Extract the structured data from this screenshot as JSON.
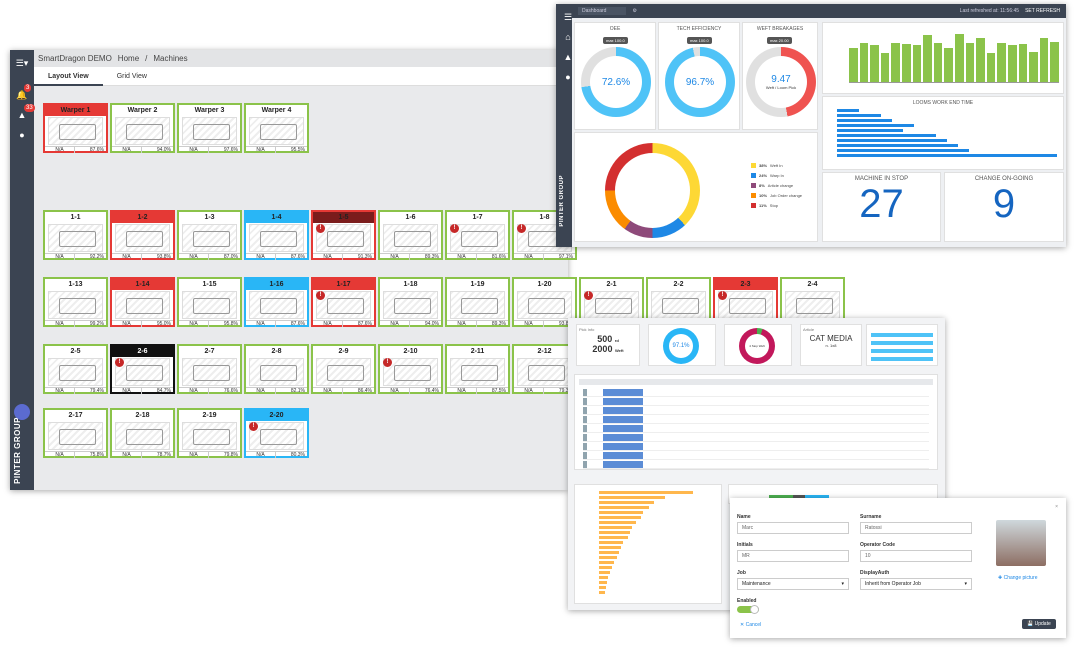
{
  "w1": {
    "app": "SmartDragon DEMO",
    "crumbs": [
      "Home",
      "/",
      "Machines"
    ],
    "tabs": [
      "Layout View",
      "Grid View"
    ],
    "badges": [
      "3",
      "33"
    ],
    "brand": "PINTER GROUP",
    "logo": "smart-dragon"
  },
  "machines": [
    {
      "n": "Warper 1",
      "a": "N/A",
      "b": "87.6%",
      "s": "red"
    },
    {
      "n": "Warper 2",
      "a": "N/A",
      "b": "94.0%",
      "s": ""
    },
    {
      "n": "Warper 3",
      "a": "N/A",
      "b": "97.6%",
      "s": ""
    },
    {
      "n": "Warper 4",
      "a": "N/A",
      "b": "95.5%",
      "s": ""
    },
    {
      "n": "1-1",
      "a": "N/A",
      "b": "92.2%",
      "s": ""
    },
    {
      "n": "1-2",
      "a": "N/A",
      "b": "93.8%",
      "s": "red"
    },
    {
      "n": "1-3",
      "a": "N/A",
      "b": "87.0%",
      "s": ""
    },
    {
      "n": "1-4",
      "a": "N/A",
      "b": "87.6%",
      "s": "blue"
    },
    {
      "n": "1-5",
      "a": "N/A",
      "b": "91.3%",
      "s": "dark",
      "al": 1
    },
    {
      "n": "1-6",
      "a": "N/A",
      "b": "89.3%",
      "s": ""
    },
    {
      "n": "1-7",
      "a": "N/A",
      "b": "81.6%",
      "s": "",
      "al": 1
    },
    {
      "n": "1-8",
      "a": "N/A",
      "b": "97.1%",
      "s": "",
      "al": 1
    },
    {
      "n": "1-13",
      "a": "N/A",
      "b": "99.2%",
      "s": ""
    },
    {
      "n": "1-14",
      "a": "N/A",
      "b": "95.0%",
      "s": "red"
    },
    {
      "n": "1-15",
      "a": "N/A",
      "b": "95.8%",
      "s": ""
    },
    {
      "n": "1-16",
      "a": "N/A",
      "b": "87.6%",
      "s": "blue"
    },
    {
      "n": "1-17",
      "a": "N/A",
      "b": "87.6%",
      "s": "red",
      "al": 1
    },
    {
      "n": "1-18",
      "a": "N/A",
      "b": "94.0%",
      "s": ""
    },
    {
      "n": "1-19",
      "a": "N/A",
      "b": "89.3%",
      "s": ""
    },
    {
      "n": "1-20",
      "a": "N/A",
      "b": "93.8%",
      "s": ""
    },
    {
      "n": "2-1",
      "a": "N/A",
      "b": "",
      "s": "",
      "al": 1
    },
    {
      "n": "2-2",
      "a": "N/A",
      "b": "",
      "s": ""
    },
    {
      "n": "2-3",
      "a": "N/A",
      "b": "",
      "s": "red",
      "al": 1
    },
    {
      "n": "2-4",
      "a": "N/A",
      "b": "",
      "s": ""
    },
    {
      "n": "2-5",
      "a": "N/A",
      "b": "79.4%",
      "s": ""
    },
    {
      "n": "2-6",
      "a": "N/A",
      "b": "84.7%",
      "s": "black",
      "al": 1
    },
    {
      "n": "2-7",
      "a": "N/A",
      "b": "76.6%",
      "s": ""
    },
    {
      "n": "2-8",
      "a": "N/A",
      "b": "82.1%",
      "s": ""
    },
    {
      "n": "2-9",
      "a": "N/A",
      "b": "86.4%",
      "s": ""
    },
    {
      "n": "2-10",
      "a": "N/A",
      "b": "76.4%",
      "s": "",
      "al": 1
    },
    {
      "n": "2-11",
      "a": "N/A",
      "b": "87.5%",
      "s": ""
    },
    {
      "n": "2-12",
      "a": "N/A",
      "b": "79.3%",
      "s": ""
    },
    {
      "n": "2-17",
      "a": "N/A",
      "b": "75.8%",
      "s": ""
    },
    {
      "n": "2-18",
      "a": "N/A",
      "b": "78.7%",
      "s": ""
    },
    {
      "n": "2-19",
      "a": "N/A",
      "b": "79.8%",
      "s": ""
    },
    {
      "n": "2-20",
      "a": "N/A",
      "b": "80.3%",
      "s": "blue",
      "al": 1
    }
  ],
  "w2": {
    "title": "Dashboard",
    "last_refresh": "Last refreshed at: 11:56:45",
    "refresh_btn": "SET REFRESH",
    "oee": {
      "title": "OEE",
      "max": "max 100.0",
      "value": "72.6%",
      "pct": 72.6
    },
    "tech": {
      "title": "TECH EFFICIENCY",
      "max": "max 100.0",
      "value": "96.7%",
      "pct": 96.7
    },
    "weft": {
      "title": "WEFT BREAKAGES",
      "max": "max 20.00",
      "value": "9.47",
      "sub": "Weft / Loom Pick",
      "pct": 47
    },
    "works_title": "LOOMS WORK END TIME",
    "stop_title": "MACHINE IN STOP",
    "stop_value": "27",
    "change_title": "CHANGE ON-GOING",
    "change_value": "9",
    "legend": [
      {
        "p": "38%",
        "l": "Weft In",
        "c": "#fdd835"
      },
      {
        "p": "24%",
        "l": "Warp In",
        "c": "#1e88e5"
      },
      {
        "p": "8%",
        "l": "Article change",
        "c": "#8e4a7a"
      },
      {
        "p": "10%",
        "l": "Job Order change",
        "c": "#fb8c00"
      },
      {
        "p": "11%",
        "l": "Stop",
        "c": "#d32f2f"
      }
    ]
  },
  "w3": {
    "card1_label": "Pick Info",
    "n1": "500",
    "u1": "rd",
    "n2": "2000",
    "u2": "Weft",
    "donut1": "97.1%",
    "donut2": "4 Stop Weft",
    "article_label": "Article",
    "article": "CAT MEDIA",
    "article_sub": "n. 1x8"
  },
  "w4": {
    "name_l": "Name",
    "name": "Marc",
    "surname_l": "Surname",
    "surname": "Ratossi",
    "initials_l": "Initials",
    "initials": "MR",
    "code_l": "Operator Code",
    "code": "10",
    "job_l": "Job",
    "job": "Maintenance",
    "disp_l": "DisplayAuth",
    "disp": "Inherit from Operator Job",
    "enabled_l": "Enabled",
    "change_pic": "Change picture",
    "cancel": "Cancel",
    "update": "Update"
  }
}
